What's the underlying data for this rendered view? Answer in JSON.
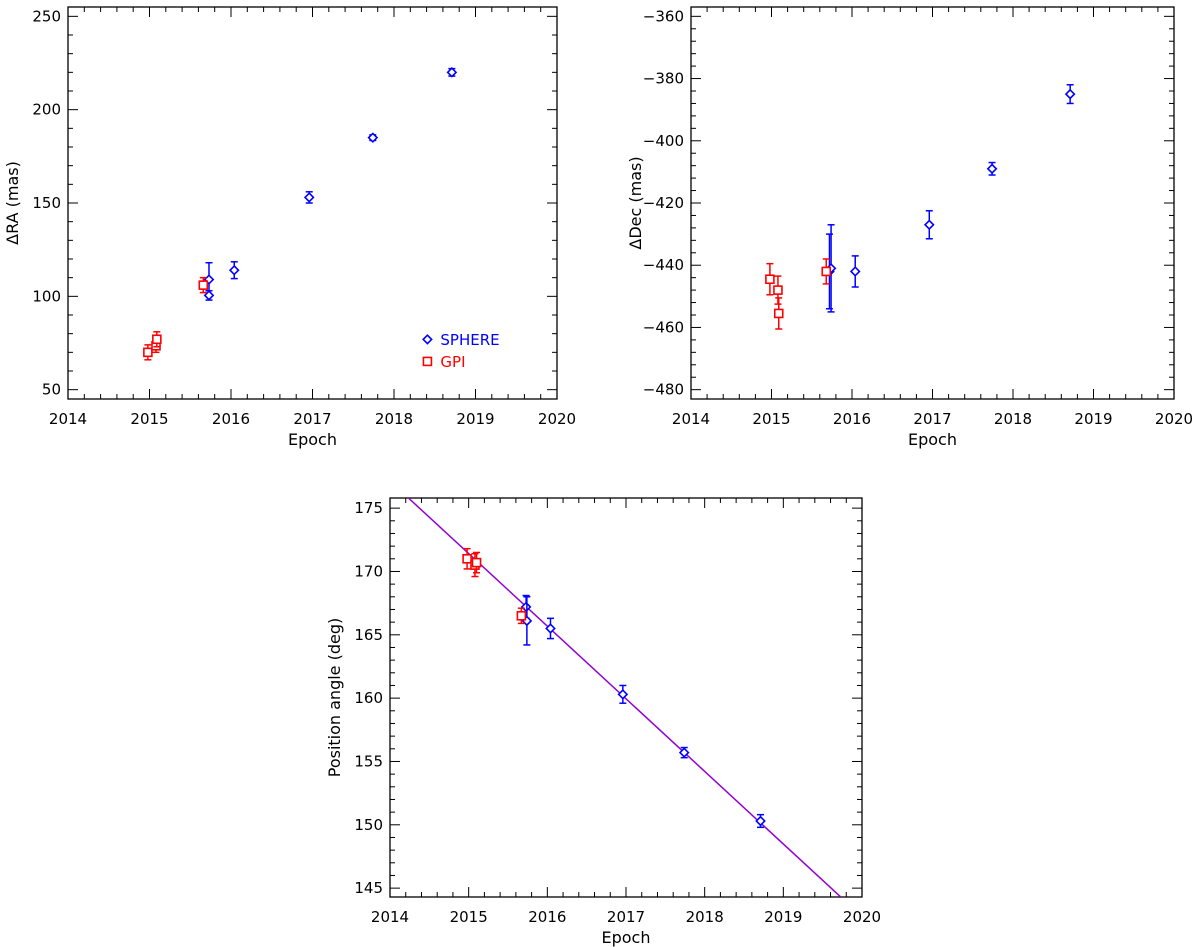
{
  "colors": {
    "sphere": "#0000ff",
    "gpi": "#ff0000",
    "fit": "#9400d3",
    "axis": "#000000"
  },
  "chart_data": [
    {
      "id": "ra",
      "type": "scatter",
      "xlabel": "Epoch",
      "ylabel": "ΔRA (mas)",
      "xlim": [
        2014,
        2020
      ],
      "ylim": [
        45,
        255
      ],
      "xticks": [
        2014,
        2015,
        2016,
        2017,
        2018,
        2019,
        2020
      ],
      "xtick_labels": [
        "2014",
        "2015",
        "2016",
        "2017",
        "2018",
        "2019",
        "2020"
      ],
      "yticks": [
        50,
        100,
        150,
        200,
        250
      ],
      "ytick_labels": [
        "50",
        "100",
        "150",
        "200",
        "250"
      ],
      "legend": {
        "placement": "bottom-right",
        "entries": [
          {
            "name": "SPHERE",
            "marker": "diamond"
          },
          {
            "name": "GPI",
            "marker": "square"
          }
        ]
      },
      "series": [
        {
          "name": "SPHERE",
          "marker": "diamond",
          "points": [
            {
              "x": 2015.73,
              "y": 109,
              "err": 9
            },
            {
              "x": 2015.73,
              "y": 100.5,
              "err": 2.5
            },
            {
              "x": 2016.04,
              "y": 114,
              "err": 4.5
            },
            {
              "x": 2016.96,
              "y": 153,
              "err": 3
            },
            {
              "x": 2017.74,
              "y": 185,
              "err": 1.5
            },
            {
              "x": 2018.71,
              "y": 220,
              "err": 2
            }
          ]
        },
        {
          "name": "GPI",
          "marker": "square",
          "points": [
            {
              "x": 2014.98,
              "y": 70,
              "err": 4
            },
            {
              "x": 2015.08,
              "y": 73.5,
              "err": 3.5
            },
            {
              "x": 2015.09,
              "y": 77,
              "err": 4
            },
            {
              "x": 2015.66,
              "y": 106,
              "err": 4
            }
          ]
        }
      ]
    },
    {
      "id": "dec",
      "type": "scatter",
      "xlabel": "Epoch",
      "ylabel": "ΔDec (mas)",
      "xlim": [
        2014,
        2020
      ],
      "ylim": [
        -483,
        -357
      ],
      "xticks": [
        2014,
        2015,
        2016,
        2017,
        2018,
        2019,
        2020
      ],
      "xtick_labels": [
        "2014",
        "2015",
        "2016",
        "2017",
        "2018",
        "2019",
        "2020"
      ],
      "yticks": [
        -480,
        -460,
        -440,
        -420,
        -400,
        -380,
        -360
      ],
      "ytick_labels": [
        "−480",
        "−460",
        "−440",
        "−420",
        "−400",
        "−380",
        "−360"
      ],
      "series": [
        {
          "name": "SPHERE",
          "marker": "diamond",
          "points": [
            {
              "x": 2015.72,
              "y": -442,
              "err": 12
            },
            {
              "x": 2015.74,
              "y": -441,
              "err": 14
            },
            {
              "x": 2016.04,
              "y": -442,
              "err": 5
            },
            {
              "x": 2016.96,
              "y": -427,
              "err": 4.5
            },
            {
              "x": 2017.74,
              "y": -409,
              "err": 2
            },
            {
              "x": 2018.71,
              "y": -385,
              "err": 3
            }
          ]
        },
        {
          "name": "GPI",
          "marker": "square",
          "points": [
            {
              "x": 2014.98,
              "y": -444.5,
              "err": 5
            },
            {
              "x": 2015.08,
              "y": -448,
              "err": 4.5
            },
            {
              "x": 2015.09,
              "y": -455.5,
              "err": 5
            },
            {
              "x": 2015.68,
              "y": -442,
              "err": 4
            }
          ]
        }
      ]
    },
    {
      "id": "pa",
      "type": "scatter",
      "xlabel": "Epoch",
      "ylabel": "Position angle (deg)",
      "xlim": [
        2014,
        2020
      ],
      "ylim": [
        144.3,
        175.8
      ],
      "xticks": [
        2014,
        2015,
        2016,
        2017,
        2018,
        2019,
        2020
      ],
      "xtick_labels": [
        "2014",
        "2015",
        "2016",
        "2017",
        "2018",
        "2019",
        "2020"
      ],
      "yticks": [
        145,
        150,
        155,
        160,
        165,
        170,
        175
      ],
      "ytick_labels": [
        "145",
        "150",
        "155",
        "160",
        "165",
        "170",
        "175"
      ],
      "fit_line": {
        "x": [
          2014.2,
          2019.73
        ],
        "y": [
          176.0,
          144.3
        ]
      },
      "series": [
        {
          "name": "SPHERE",
          "marker": "diamond",
          "points": [
            {
              "x": 2015.73,
              "y": 167.2,
              "err": 0.9
            },
            {
              "x": 2015.74,
              "y": 166.1,
              "err": 1.9
            },
            {
              "x": 2016.04,
              "y": 165.5,
              "err": 0.8
            },
            {
              "x": 2016.96,
              "y": 160.3,
              "err": 0.7
            },
            {
              "x": 2017.74,
              "y": 155.7,
              "err": 0.4
            },
            {
              "x": 2018.71,
              "y": 150.3,
              "err": 0.5
            }
          ]
        },
        {
          "name": "GPI",
          "marker": "square",
          "points": [
            {
              "x": 2014.98,
              "y": 171.0,
              "err": 0.8
            },
            {
              "x": 2015.08,
              "y": 170.5,
              "err": 0.9
            },
            {
              "x": 2015.1,
              "y": 170.7,
              "err": 0.8
            },
            {
              "x": 2015.67,
              "y": 166.5,
              "err": 0.6
            }
          ]
        }
      ]
    }
  ]
}
